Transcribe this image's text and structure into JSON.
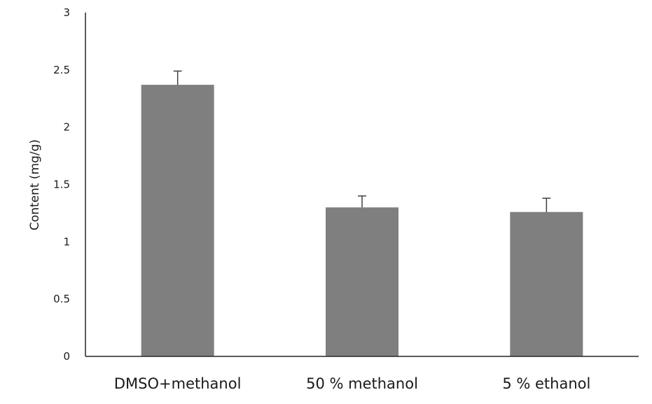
{
  "chart_data": {
    "type": "bar",
    "title": "",
    "xlabel": "",
    "ylabel": "Content (mg/g)",
    "categories": [
      "DMSO+methanol",
      "50 % methanol",
      "5 % ethanol"
    ],
    "values": [
      2.37,
      1.3,
      1.26
    ],
    "error_bars": [
      0.12,
      0.1,
      0.12
    ],
    "ylim": [
      0,
      3
    ],
    "yticks": [
      "0",
      "0.5",
      "1",
      "1.5",
      "2",
      "2.5",
      "3"
    ],
    "grid": false,
    "legend": "none",
    "bar_color": "#7f7f7f",
    "error_bar_color": "#404040",
    "axis_color": "#262626"
  }
}
